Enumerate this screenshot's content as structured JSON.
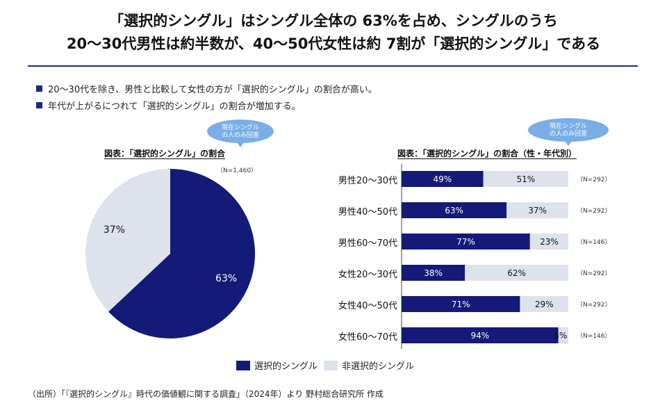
{
  "title": {
    "line1": "「選択的シングル」はシングル全体の 63%を占め、シングルのうち",
    "line2": "20〜30代男性は約半数が、40〜50代女性は約 7割が「選択的シングル」である"
  },
  "bullets": [
    "20〜30代を除き、男性と比較して女性の方が「選択的シングル」の割合が高い。",
    "年代が上がるにつれて「選択的シングル」の割合が増加する。"
  ],
  "bubble": {
    "line1": "現在シングル",
    "line2": "の人のみ回答"
  },
  "colors": {
    "selective": "#141a78",
    "non_selective": "#dde2ec",
    "accent_rule": "#1b2a7a",
    "bubble": "#7aaee6"
  },
  "chart_data": [
    {
      "type": "pie",
      "title": "図表：「選択的シングル」の割合",
      "n_label": "（N=1,460）",
      "slices": [
        {
          "name": "選択的シングル",
          "value": 63,
          "label": "63%"
        },
        {
          "name": "非選択的シングル",
          "value": 37,
          "label": "37%"
        }
      ]
    },
    {
      "type": "bar",
      "orientation": "horizontal",
      "stacked": true,
      "title": "図表：「選択的シングル」の割合（性・年代別）",
      "categories": [
        "男性20〜30代",
        "男性40〜50代",
        "男性60〜70代",
        "女性20〜30代",
        "女性40〜50代",
        "女性60〜70代"
      ],
      "n_labels": [
        "（N=292）",
        "（N=292）",
        "（N=146）",
        "（N=292）",
        "（N=292）",
        "（N=146）"
      ],
      "series": [
        {
          "name": "選択的シングル",
          "values": [
            49,
            63,
            77,
            38,
            71,
            94
          ]
        },
        {
          "name": "非選択的シングル",
          "values": [
            51,
            37,
            23,
            62,
            29,
            6
          ]
        }
      ],
      "xlim": [
        0,
        100
      ],
      "legend": [
        "選択的シングル",
        "非選択的シングル"
      ]
    }
  ],
  "source": "（出所）「『選択的シングル』時代の価値観に関する調査」（2024年）より 野村総合研究所 作成"
}
